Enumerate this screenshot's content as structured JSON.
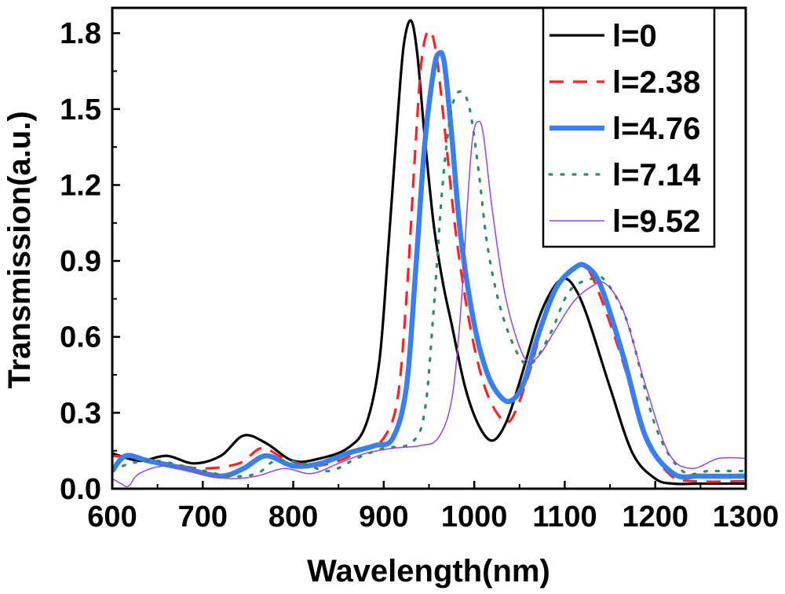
{
  "chart_data": {
    "type": "line",
    "title": "",
    "xlabel": "Wavelength(nm)",
    "ylabel": "Transmission(a.u.)",
    "xlim": [
      600,
      1300
    ],
    "ylim": [
      0,
      1.9
    ],
    "xticks": [
      600,
      700,
      800,
      900,
      1000,
      1100,
      1200,
      1300
    ],
    "yticks": [
      0.0,
      0.3,
      0.6,
      0.9,
      1.2,
      1.5,
      1.8
    ],
    "xtick_labels": [
      "600",
      "700",
      "800",
      "900",
      "1000",
      "1100",
      "1200",
      "1300"
    ],
    "ytick_labels": [
      "0.0",
      "0.3",
      "0.6",
      "0.9",
      "1.2",
      "1.5",
      "1.8"
    ],
    "legend_position": "top-right",
    "series": [
      {
        "name": "l=0",
        "color": "#000000",
        "style": "solid",
        "weight": "medium",
        "x": [
          600,
          630,
          660,
          690,
          720,
          745,
          770,
          800,
          830,
          860,
          880,
          895,
          905,
          915,
          922,
          930,
          937,
          945,
          955,
          965,
          975,
          990,
          1005,
          1020,
          1035,
          1050,
          1070,
          1085,
          1098,
          1110,
          1125,
          1150,
          1175,
          1200,
          1220,
          1250,
          1300
        ],
        "y": [
          0.14,
          0.11,
          0.13,
          0.1,
          0.13,
          0.21,
          0.18,
          0.11,
          0.12,
          0.16,
          0.25,
          0.5,
          0.95,
          1.45,
          1.75,
          1.85,
          1.72,
          1.4,
          1.05,
          0.82,
          0.65,
          0.4,
          0.25,
          0.19,
          0.26,
          0.42,
          0.66,
          0.78,
          0.83,
          0.8,
          0.68,
          0.4,
          0.14,
          0.04,
          0.02,
          0.02,
          0.02
        ]
      },
      {
        "name": "l=2.38",
        "color": "#ff2020",
        "style": "dashed",
        "weight": "medium",
        "x": [
          600,
          630,
          660,
          700,
          740,
          765,
          790,
          820,
          850,
          880,
          900,
          915,
          925,
          935,
          942,
          950,
          958,
          968,
          980,
          995,
          1010,
          1025,
          1040,
          1060,
          1080,
          1100,
          1115,
          1130,
          1160,
          1190,
          1215,
          1240,
          1300
        ],
        "y": [
          0.13,
          0.12,
          0.1,
          0.08,
          0.1,
          0.16,
          0.12,
          0.09,
          0.11,
          0.16,
          0.2,
          0.35,
          0.75,
          1.35,
          1.7,
          1.81,
          1.72,
          1.4,
          1.0,
          0.65,
          0.42,
          0.3,
          0.27,
          0.45,
          0.7,
          0.84,
          0.88,
          0.84,
          0.55,
          0.2,
          0.06,
          0.03,
          0.03
        ]
      },
      {
        "name": "l=4.76",
        "color": "#3a7ff0",
        "style": "solid",
        "weight": "thick",
        "x": [
          600,
          615,
          640,
          680,
          720,
          745,
          770,
          800,
          830,
          860,
          890,
          910,
          925,
          935,
          945,
          955,
          961,
          967,
          975,
          985,
          1000,
          1015,
          1030,
          1042,
          1055,
          1070,
          1090,
          1110,
          1123,
          1140,
          1165,
          1190,
          1220,
          1250,
          1300
        ],
        "y": [
          0.07,
          0.13,
          0.11,
          0.08,
          0.05,
          0.08,
          0.13,
          0.09,
          0.1,
          0.14,
          0.17,
          0.2,
          0.4,
          0.85,
          1.35,
          1.65,
          1.72,
          1.68,
          1.4,
          1.0,
          0.65,
          0.45,
          0.36,
          0.35,
          0.42,
          0.6,
          0.79,
          0.87,
          0.88,
          0.8,
          0.52,
          0.2,
          0.06,
          0.05,
          0.05
        ]
      },
      {
        "name": "l=7.14",
        "color": "#2e8b6f",
        "style": "dotted",
        "weight": "medium",
        "x": [
          600,
          620,
          650,
          690,
          730,
          760,
          780,
          810,
          840,
          870,
          900,
          930,
          945,
          955,
          965,
          975,
          985,
          995,
          1005,
          1015,
          1030,
          1050,
          1065,
          1085,
          1105,
          1130,
          1145,
          1170,
          1200,
          1230,
          1260,
          1300
        ],
        "y": [
          0.07,
          0.1,
          0.11,
          0.08,
          0.05,
          0.06,
          0.11,
          0.1,
          0.07,
          0.12,
          0.16,
          0.18,
          0.3,
          0.7,
          1.2,
          1.5,
          1.57,
          1.5,
          1.25,
          0.95,
          0.7,
          0.52,
          0.5,
          0.62,
          0.78,
          0.83,
          0.82,
          0.65,
          0.25,
          0.07,
          0.07,
          0.07
        ]
      },
      {
        "name": "l=9.52",
        "color": "#a040d8",
        "style": "solid",
        "weight": "thin",
        "x": [
          600,
          610,
          618,
          630,
          660,
          700,
          730,
          760,
          790,
          820,
          850,
          880,
          910,
          940,
          960,
          975,
          985,
          992,
          998,
          1004,
          1010,
          1020,
          1035,
          1055,
          1070,
          1090,
          1110,
          1130,
          1145,
          1165,
          1190,
          1215,
          1240,
          1270,
          1300
        ],
        "y": [
          0.04,
          0.02,
          0.01,
          0.06,
          0.09,
          0.06,
          0.04,
          0.05,
          0.08,
          0.06,
          0.1,
          0.14,
          0.16,
          0.17,
          0.2,
          0.35,
          0.7,
          1.1,
          1.38,
          1.45,
          1.4,
          1.1,
          0.75,
          0.52,
          0.52,
          0.63,
          0.74,
          0.8,
          0.81,
          0.7,
          0.4,
          0.14,
          0.08,
          0.12,
          0.12
        ]
      }
    ]
  }
}
